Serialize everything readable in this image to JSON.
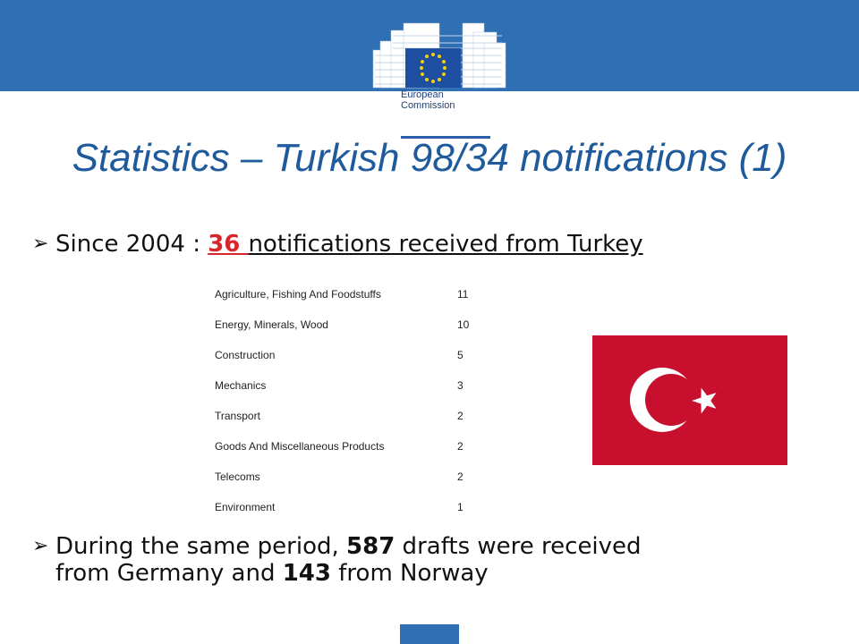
{
  "logo": {
    "line1": "European",
    "line2": "Commission"
  },
  "title": "Statistics – Turkish 98/34 notifications (1)",
  "bullet1": {
    "prefix": "Since 2004 : ",
    "highlight": "36 ",
    "rest": "notifications received from Turkey"
  },
  "sectors": [
    {
      "name": "Agriculture, Fishing And Foodstuffs",
      "count": "11"
    },
    {
      "name": "Energy, Minerals, Wood",
      "count": "10"
    },
    {
      "name": "Construction",
      "count": "5"
    },
    {
      "name": "Mechanics",
      "count": "3"
    },
    {
      "name": "Transport",
      "count": "2"
    },
    {
      "name": "Goods And Miscellaneous Products",
      "count": "2"
    },
    {
      "name": "Telecoms",
      "count": "2"
    },
    {
      "name": "Environment",
      "count": "1"
    }
  ],
  "bullet2": {
    "part1": "During the same period, ",
    "num1": "587",
    "part2": " drafts were received",
    "part3": "from Germany and ",
    "num2": "143",
    "part4": " from Norway"
  },
  "colors": {
    "brand_blue": "#2f6fb3",
    "title_blue": "#1f5b9c",
    "highlight_red": "#d9262c",
    "flag_red": "#c8102e"
  },
  "icons": {
    "bullet": "arrow-bullet-icon",
    "flag": "turkish-flag-icon",
    "logo": "european-commission-logo"
  }
}
